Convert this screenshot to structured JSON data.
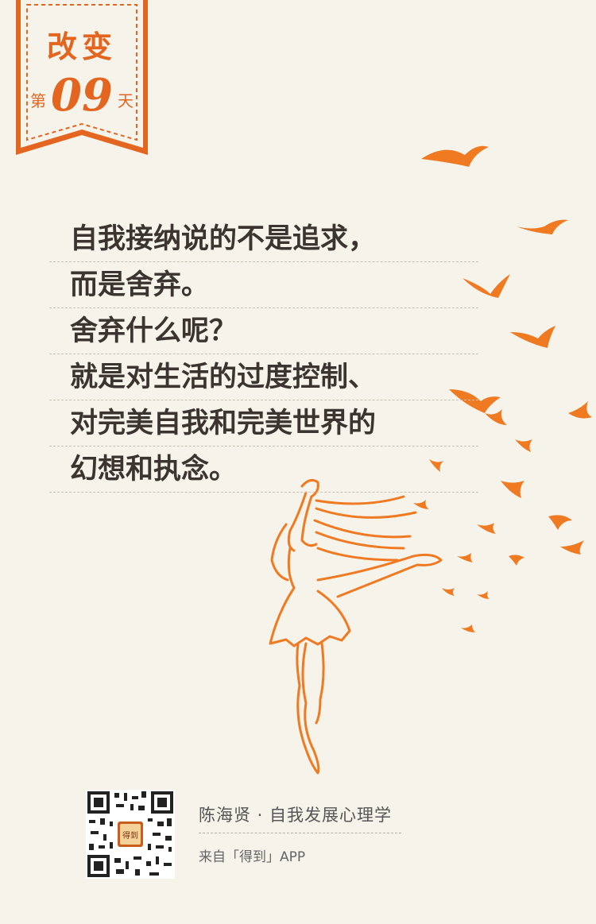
{
  "header": {
    "title": "改变",
    "day_prefix": "第",
    "day_number": "09",
    "day_suffix": "天"
  },
  "quote": {
    "lines": [
      "自我接纳说的不是追求，",
      "而是舍弃。",
      "舍弃什么呢？",
      "就是对生活的过度控制、",
      "对完美自我和完美世界的",
      "幻想和执念。"
    ]
  },
  "footer": {
    "author": "陈海贤 · 自我发展心理学",
    "source": "来自「得到」APP",
    "qr_logo_text": "得到"
  },
  "colors": {
    "accent": "#e4651f",
    "background": "#f6f3ea",
    "text": "#3b3430"
  }
}
